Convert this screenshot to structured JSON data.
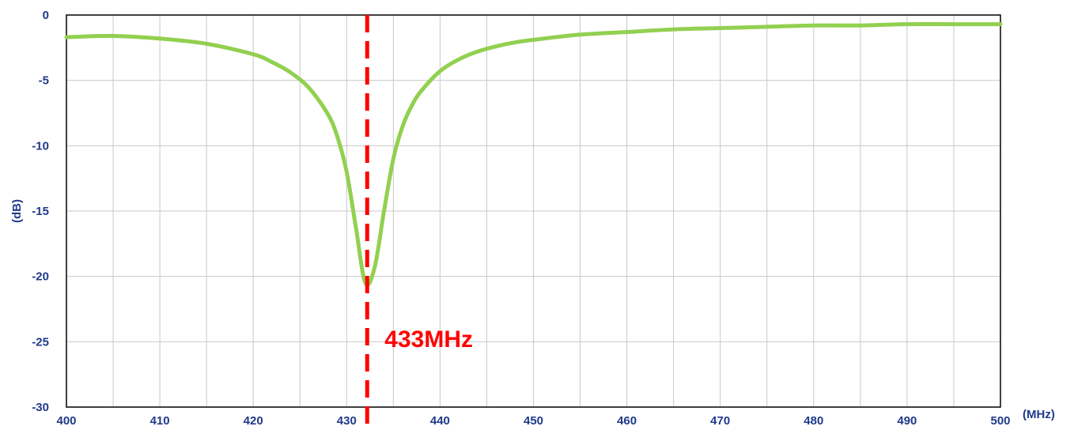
{
  "chart_data": {
    "type": "line",
    "title": "",
    "xlabel": "(MHz)",
    "ylabel": "(dB)",
    "xlim": [
      400,
      500
    ],
    "ylim": [
      -30,
      0
    ],
    "x_ticks": [
      400,
      410,
      420,
      430,
      440,
      450,
      460,
      470,
      480,
      490,
      500
    ],
    "x_tick_labels": [
      "400",
      "410",
      "420",
      "430",
      "440",
      "450",
      "460",
      "470",
      "480",
      "490",
      "500"
    ],
    "y_ticks": [
      0,
      -5,
      -10,
      -15,
      -20,
      -25,
      -30
    ],
    "y_tick_labels": [
      "0",
      "-5",
      "-10",
      "-15",
      "-20",
      "-25",
      "-30"
    ],
    "grid": true,
    "legend": "none",
    "series": [
      {
        "color": "#92d050",
        "x": [
          400,
          405,
          410,
          415,
          420,
          422,
          424,
          426,
          428,
          429,
          430,
          431,
          432,
          433,
          434,
          435,
          436,
          437,
          438,
          440,
          442,
          444,
          446,
          448,
          450,
          455,
          460,
          465,
          470,
          475,
          480,
          485,
          490,
          495,
          500
        ],
        "y": [
          -1.7,
          -1.6,
          -1.8,
          -2.2,
          -3.0,
          -3.6,
          -4.4,
          -5.6,
          -7.6,
          -9.3,
          -12.0,
          -16.3,
          -20.5,
          -19.3,
          -15.0,
          -11.0,
          -8.5,
          -6.9,
          -5.8,
          -4.3,
          -3.4,
          -2.8,
          -2.4,
          -2.1,
          -1.9,
          -1.5,
          -1.3,
          -1.1,
          -1.0,
          -0.9,
          -0.8,
          -0.8,
          -0.7,
          -0.7,
          -0.7
        ]
      }
    ],
    "annotations": [
      {
        "type": "vline",
        "x": 432.2,
        "color": "#ff0000",
        "style": "dashed",
        "label": "433MHz"
      }
    ]
  }
}
